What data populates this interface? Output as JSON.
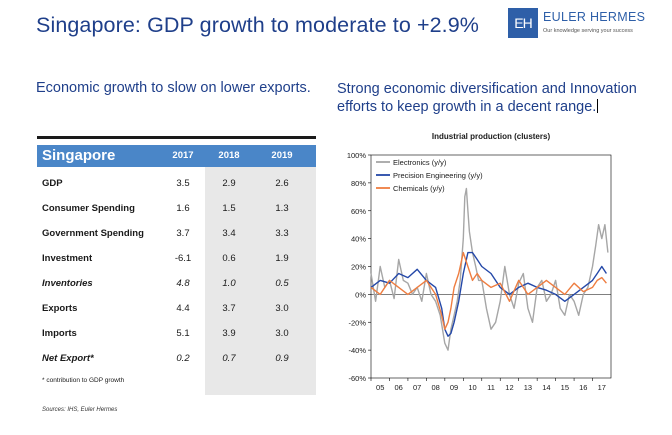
{
  "header": {
    "title": "Singapore: GDP growth to moderate to +2.9%",
    "logo_mark": "EH",
    "logo_name": "EULER HERMES",
    "logo_tagline": "Our knowledge serving your success"
  },
  "left": {
    "subtitle": "Economic growth to slow on lower exports.",
    "table": {
      "name": "Singapore",
      "years": [
        "2017",
        "2018",
        "2019"
      ],
      "rows": [
        {
          "label": "GDP",
          "values": [
            "3.5",
            "2.9",
            "2.6"
          ],
          "italic": false
        },
        {
          "label": "Consumer Spending",
          "values": [
            "1.6",
            "1.5",
            "1.3"
          ],
          "italic": false
        },
        {
          "label": "Government Spending",
          "values": [
            "3.7",
            "3.4",
            "3.3"
          ],
          "italic": false
        },
        {
          "label": "Investment",
          "values": [
            "-6.1",
            "0.6",
            "1.9"
          ],
          "italic": false
        },
        {
          "label": "Inventories",
          "values": [
            "4.8",
            "1.0",
            "0.5"
          ],
          "italic": true
        },
        {
          "label": "Exports",
          "values": [
            "4.4",
            "3.7",
            "3.0"
          ],
          "italic": false
        },
        {
          "label": "Imports",
          "values": [
            "5.1",
            "3.9",
            "3.0"
          ],
          "italic": false
        },
        {
          "label": "Net Export*",
          "values": [
            "0.2",
            "0.7",
            "0.9"
          ],
          "italic": true
        }
      ],
      "footnote": "* contribution to GDP growth"
    },
    "source": "Sources: IHS, Euler Hermes"
  },
  "right": {
    "subtitle": "Strong economic diversification and Innovation efforts to keep growth in a decent range."
  },
  "chart_data": {
    "type": "line",
    "title": "Industrial production (clusters)",
    "xlabel": "",
    "ylabel": "",
    "x_ticks": [
      "05",
      "06",
      "07",
      "08",
      "09",
      "10",
      "11",
      "12",
      "13",
      "14",
      "15",
      "16",
      "17"
    ],
    "x_range": [
      2005.0,
      2018.0
    ],
    "y_ticks": [
      "100%",
      "80%",
      "60%",
      "40%",
      "20%",
      "0%",
      "-20%",
      "-40%",
      "-60%"
    ],
    "ylim": [
      -60,
      100
    ],
    "grid": false,
    "legend": "top-left",
    "series": [
      {
        "name": "Electronics (y/y)",
        "color": "#a6a6a6",
        "x": [
          2005.0,
          2005.25,
          2005.5,
          2005.75,
          2006.0,
          2006.25,
          2006.5,
          2006.75,
          2007.0,
          2007.25,
          2007.5,
          2007.75,
          2008.0,
          2008.25,
          2008.5,
          2008.75,
          2009.0,
          2009.17,
          2009.33,
          2009.5,
          2009.67,
          2009.83,
          2010.0,
          2010.08,
          2010.17,
          2010.25,
          2010.33,
          2010.5,
          2010.67,
          2010.83,
          2011.0,
          2011.25,
          2011.5,
          2011.75,
          2012.0,
          2012.25,
          2012.5,
          2012.75,
          2013.0,
          2013.25,
          2013.5,
          2013.75,
          2014.0,
          2014.25,
          2014.5,
          2014.75,
          2015.0,
          2015.25,
          2015.5,
          2015.75,
          2016.0,
          2016.25,
          2016.5,
          2016.75,
          2017.0,
          2017.17,
          2017.33,
          2017.5,
          2017.67,
          2017.83
        ],
        "values": [
          15,
          -5,
          20,
          5,
          10,
          -3,
          25,
          10,
          8,
          0,
          5,
          -5,
          15,
          0,
          -5,
          -15,
          -35,
          -40,
          -25,
          -15,
          -5,
          10,
          40,
          70,
          76,
          60,
          45,
          30,
          20,
          10,
          10,
          -10,
          -25,
          -20,
          -5,
          20,
          0,
          -10,
          8,
          15,
          -10,
          -20,
          5,
          10,
          -5,
          0,
          10,
          -10,
          -15,
          0,
          -5,
          -15,
          0,
          5,
          20,
          35,
          50,
          40,
          50,
          30
        ]
      },
      {
        "name": "Precision Engineering (y/y)",
        "color": "#2448a8",
        "x": [
          2005.0,
          2005.5,
          2006.0,
          2006.5,
          2007.0,
          2007.5,
          2008.0,
          2008.5,
          2008.83,
          2009.0,
          2009.17,
          2009.33,
          2009.5,
          2009.75,
          2010.0,
          2010.25,
          2010.5,
          2010.75,
          2011.0,
          2011.5,
          2012.0,
          2012.5,
          2013.0,
          2013.5,
          2014.0,
          2014.5,
          2015.0,
          2015.5,
          2016.0,
          2016.5,
          2017.0,
          2017.25,
          2017.5,
          2017.75
        ],
        "values": [
          5,
          10,
          8,
          15,
          12,
          18,
          10,
          5,
          -10,
          -25,
          -30,
          -28,
          -20,
          -5,
          15,
          30,
          30,
          25,
          20,
          15,
          5,
          0,
          5,
          8,
          5,
          3,
          0,
          -5,
          0,
          5,
          10,
          15,
          20,
          15
        ]
      },
      {
        "name": "Chemicals (y/y)",
        "color": "#ee7d40",
        "x": [
          2005.0,
          2005.5,
          2006.0,
          2006.5,
          2007.0,
          2007.5,
          2008.0,
          2008.5,
          2008.83,
          2009.0,
          2009.17,
          2009.33,
          2009.5,
          2009.75,
          2010.0,
          2010.25,
          2010.5,
          2010.75,
          2011.0,
          2011.5,
          2012.0,
          2012.5,
          2013.0,
          2013.5,
          2014.0,
          2014.5,
          2015.0,
          2015.5,
          2016.0,
          2016.5,
          2017.0,
          2017.25,
          2017.5,
          2017.75
        ],
        "values": [
          5,
          0,
          10,
          5,
          0,
          5,
          10,
          0,
          -15,
          -25,
          -20,
          -10,
          5,
          15,
          30,
          20,
          10,
          15,
          10,
          5,
          8,
          -5,
          10,
          0,
          5,
          10,
          5,
          0,
          8,
          2,
          5,
          10,
          12,
          8
        ]
      }
    ]
  }
}
